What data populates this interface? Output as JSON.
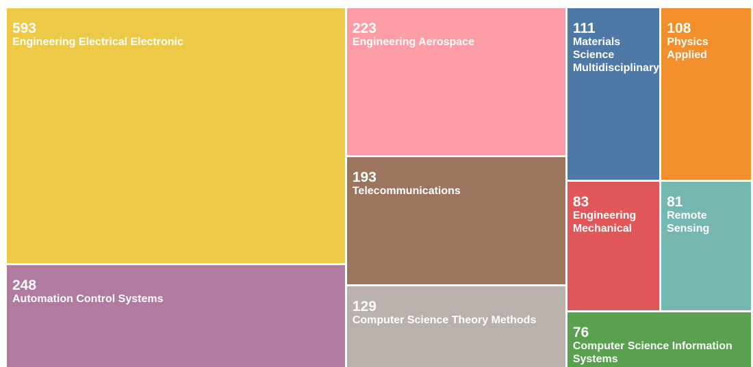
{
  "chart_data": {
    "type": "treemap",
    "categories": [
      "Engineering Electrical Electronic",
      "Automation Control Systems",
      "Engineering Aerospace",
      "Telecommunications",
      "Computer Science Theory Methods",
      "Materials Science Multidisciplinary",
      "Physics Applied",
      "Engineering Mechanical",
      "Remote Sensing",
      "Computer Science Information Systems"
    ],
    "values": [
      593,
      248,
      223,
      193,
      129,
      111,
      108,
      83,
      81,
      76
    ],
    "colors": [
      "#edc948",
      "#b07aa1",
      "#ff9da7",
      "#9c755f",
      "#bab0ac",
      "#4e79a7",
      "#f28e2b",
      "#e15759",
      "#76b7b2",
      "#59a14f"
    ]
  }
}
